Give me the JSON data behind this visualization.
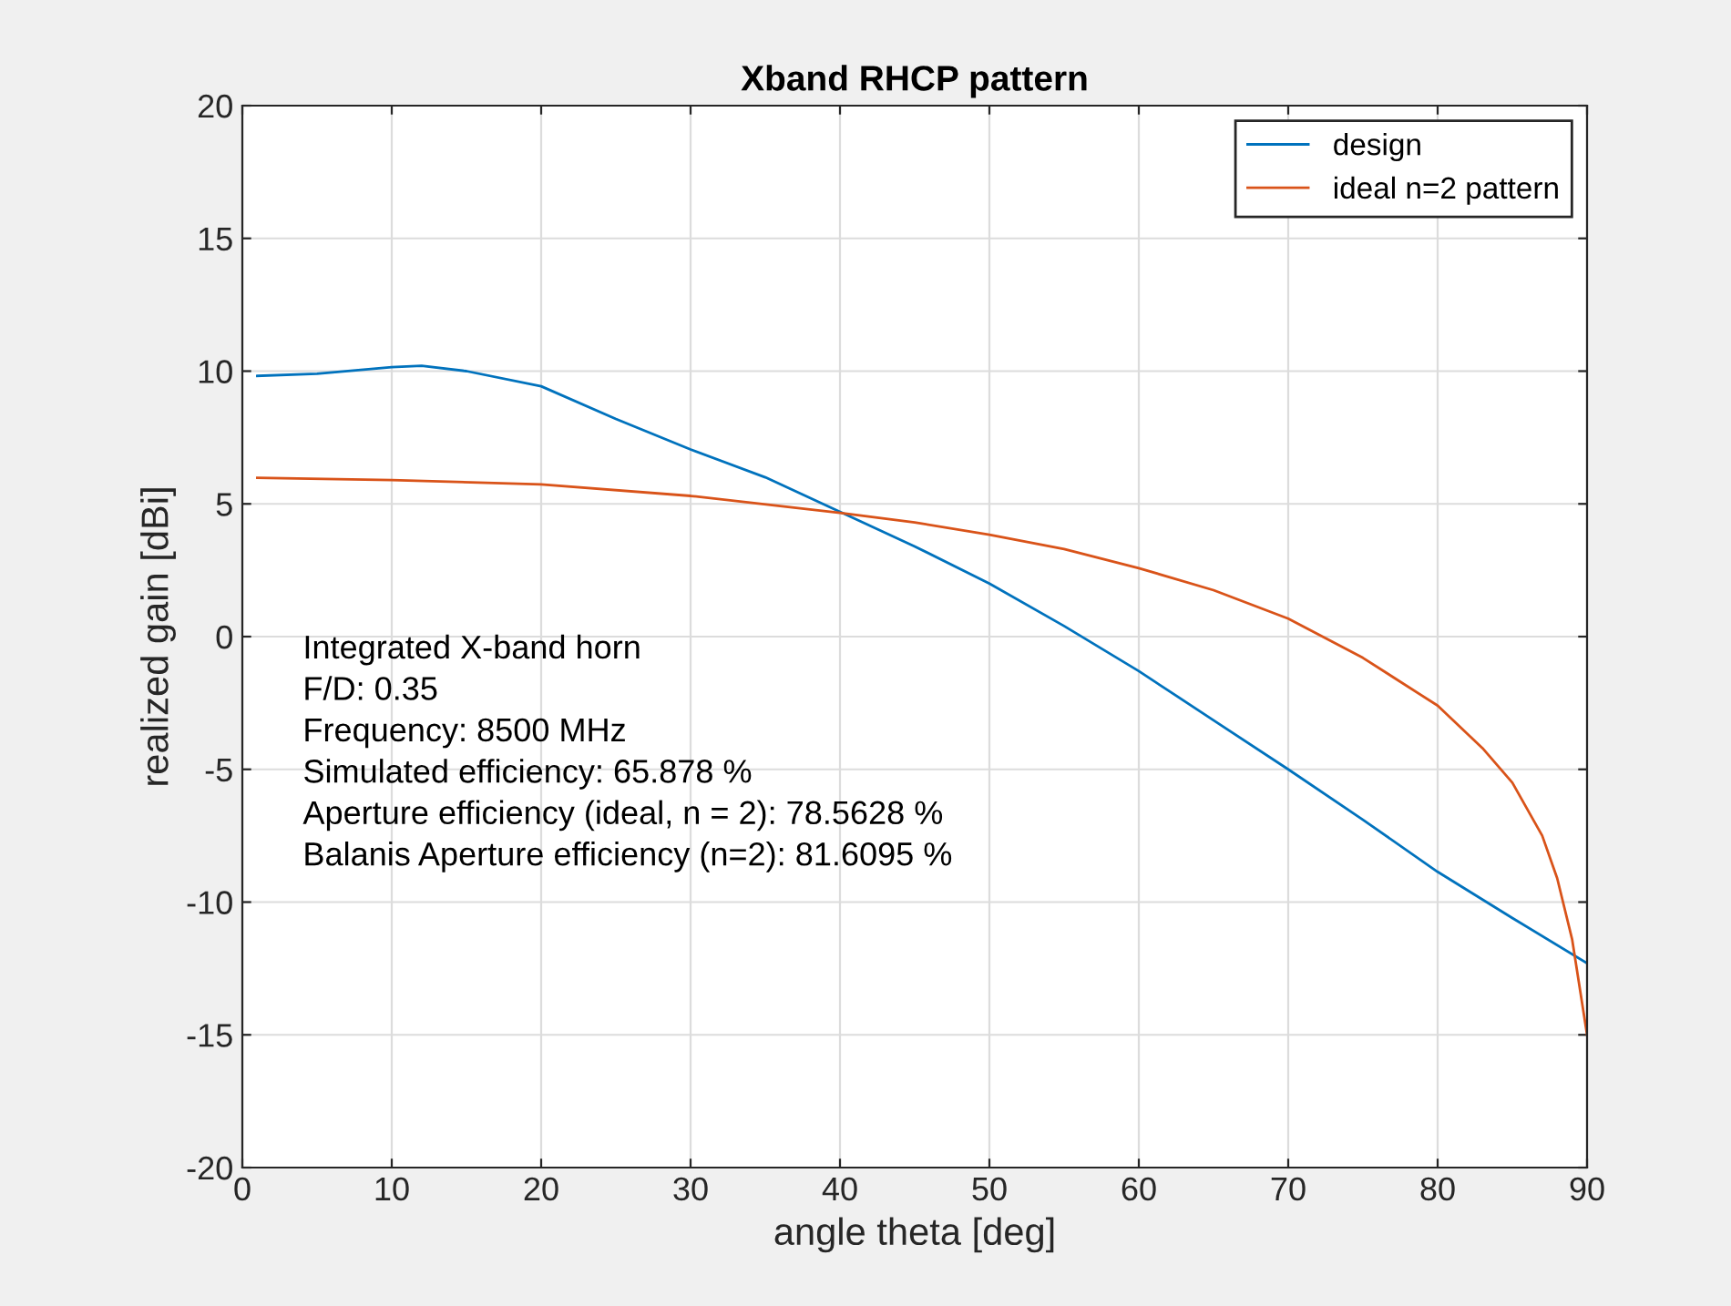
{
  "chart_data": {
    "type": "line",
    "title": "Xband RHCP pattern",
    "xlabel": "angle theta [deg]",
    "ylabel": "realized gain [dBi]",
    "xlim": [
      0,
      90
    ],
    "ylim": [
      -20,
      20
    ],
    "xticks": [
      0,
      10,
      20,
      30,
      40,
      50,
      60,
      70,
      80,
      90
    ],
    "yticks": [
      -20,
      -15,
      -10,
      -5,
      0,
      5,
      10,
      15,
      20
    ],
    "grid": true,
    "legend": "top right",
    "marker": "none",
    "line_style": "solid",
    "series": [
      {
        "name": "design",
        "color": "#0072bd",
        "x": [
          1,
          5,
          10,
          12,
          15,
          20,
          25,
          30,
          35,
          40,
          45,
          50,
          55,
          60,
          65,
          70,
          75,
          80,
          85,
          90
        ],
        "values": [
          9.82,
          9.9,
          10.15,
          10.2,
          10.0,
          9.43,
          8.2,
          7.05,
          6.0,
          4.7,
          3.4,
          2.0,
          0.4,
          -1.3,
          -3.15,
          -5.0,
          -6.9,
          -8.86,
          -10.6,
          -12.3
        ]
      },
      {
        "name": "ideal n=2 pattern",
        "color": "#d95319",
        "x": [
          1,
          10,
          20,
          30,
          40,
          45,
          50,
          55,
          60,
          65,
          70,
          75,
          80,
          83,
          85,
          87,
          88,
          89,
          90
        ],
        "values": [
          5.98,
          5.9,
          5.73,
          5.3,
          4.66,
          4.3,
          3.84,
          3.3,
          2.58,
          1.75,
          0.68,
          -0.8,
          -2.6,
          -4.2,
          -5.5,
          -7.5,
          -9.1,
          -11.4,
          -15
        ]
      }
    ],
    "annotations": [
      "Integrated X-band horn\nF/D: 0.35\nFrequency: 8500 MHz\nSimulated efficiency: 65.878 %\nAperture efficiency (ideal, n = 2): 78.5628 %\nBalanis Aperture efficiency (n=2): 81.6095 %"
    ]
  }
}
